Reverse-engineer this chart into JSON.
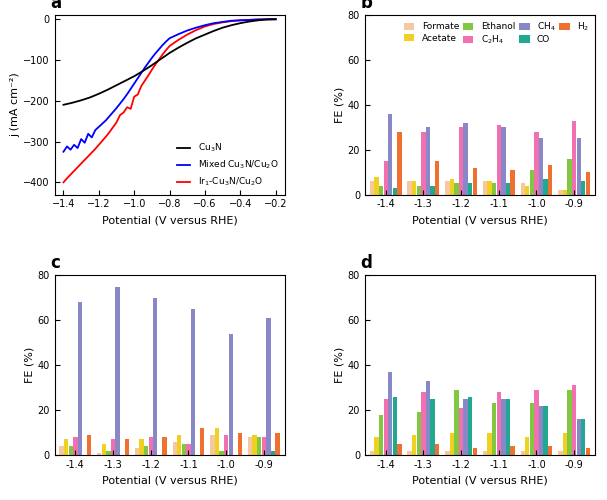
{
  "panel_a": {
    "xlabel": "Potential (V versus RHE)",
    "ylabel": "j (mA cm⁻²)",
    "xlim": [
      -1.45,
      -0.15
    ],
    "ylim": [
      -430,
      10
    ],
    "yticks": [
      0,
      -100,
      -200,
      -300,
      -400
    ],
    "xticks": [
      -1.4,
      -1.2,
      -1.0,
      -0.8,
      -0.6,
      -0.4,
      -0.2
    ],
    "Cu3N_x": [
      -1.4,
      -1.35,
      -1.3,
      -1.25,
      -1.2,
      -1.15,
      -1.1,
      -1.05,
      -1.0,
      -0.95,
      -0.9,
      -0.85,
      -0.8,
      -0.75,
      -0.7,
      -0.65,
      -0.6,
      -0.55,
      -0.5,
      -0.45,
      -0.4,
      -0.35,
      -0.3,
      -0.25,
      -0.2
    ],
    "Cu3N_y": [
      -210,
      -205,
      -199,
      -192,
      -183,
      -173,
      -162,
      -151,
      -140,
      -127,
      -113,
      -98,
      -83,
      -70,
      -58,
      -47,
      -38,
      -29,
      -21,
      -15,
      -10,
      -6,
      -3,
      -1,
      -0.5
    ],
    "Mixed_x": [
      -1.4,
      -1.38,
      -1.36,
      -1.34,
      -1.32,
      -1.3,
      -1.28,
      -1.26,
      -1.24,
      -1.22,
      -1.2,
      -1.18,
      -1.16,
      -1.14,
      -1.12,
      -1.1,
      -1.08,
      -1.06,
      -1.04,
      -1.02,
      -1.0,
      -0.98,
      -0.96,
      -0.94,
      -0.92,
      -0.9,
      -0.88,
      -0.86,
      -0.84,
      -0.82,
      -0.8,
      -0.75,
      -0.7,
      -0.65,
      -0.6,
      -0.55,
      -0.5,
      -0.45,
      -0.4,
      -0.35,
      -0.3,
      -0.25,
      -0.2
    ],
    "Mixed_y": [
      -325,
      -318,
      -312,
      -306,
      -299,
      -294,
      -287,
      -281,
      -276,
      -272,
      -264,
      -256,
      -248,
      -238,
      -228,
      -218,
      -207,
      -196,
      -184,
      -171,
      -158,
      -145,
      -132,
      -119,
      -107,
      -95,
      -84,
      -74,
      -64,
      -55,
      -47,
      -37,
      -28,
      -21,
      -15,
      -10,
      -7,
      -4,
      -3,
      -2,
      -1,
      -0.5,
      -0.3
    ],
    "Mixed_noise_x": [
      -1.4,
      -1.38,
      -1.36,
      -1.34,
      -1.32,
      -1.3,
      -1.28,
      -1.26,
      -1.24,
      -1.22,
      -1.2
    ],
    "Mixed_noise_y": [
      -325,
      -312,
      -320,
      -308,
      -316,
      -294,
      -303,
      -281,
      -290,
      -272,
      -264
    ],
    "Ir1_x": [
      -1.4,
      -1.38,
      -1.36,
      -1.34,
      -1.32,
      -1.3,
      -1.28,
      -1.26,
      -1.24,
      -1.22,
      -1.2,
      -1.18,
      -1.16,
      -1.14,
      -1.12,
      -1.1,
      -1.08,
      -1.06,
      -1.04,
      -1.02,
      -1.0,
      -0.98,
      -0.96,
      -0.94,
      -0.92,
      -0.9,
      -0.88,
      -0.86,
      -0.84,
      -0.82,
      -0.8,
      -0.75,
      -0.7,
      -0.65,
      -0.6,
      -0.55,
      -0.5,
      -0.45,
      -0.4,
      -0.35,
      -0.3,
      -0.25,
      -0.2
    ],
    "Ir1_y": [
      -400,
      -390,
      -381,
      -372,
      -363,
      -354,
      -345,
      -336,
      -327,
      -318,
      -308,
      -298,
      -288,
      -277,
      -265,
      -253,
      -241,
      -229,
      -216,
      -203,
      -190,
      -177,
      -164,
      -151,
      -138,
      -124,
      -111,
      -99,
      -87,
      -76,
      -66,
      -51,
      -38,
      -27,
      -18,
      -12,
      -8,
      -5,
      -3,
      -2,
      -1,
      -0.5,
      -0.3
    ],
    "Ir1_noise_x": [
      -1.1,
      -1.08,
      -1.06,
      -1.04,
      -1.02,
      -1.0,
      -0.98,
      -0.96
    ],
    "Ir1_noise_y": [
      -253,
      -235,
      -229,
      -216,
      -220,
      -190,
      -185,
      -164
    ]
  },
  "bar_colors": {
    "Formate": "#F5C8A0",
    "Acetate": "#F0D020",
    "Ethanol": "#80C840",
    "C2H4": "#F070B0",
    "CH4": "#8888C8",
    "CO": "#20A890",
    "H2": "#F07030"
  },
  "potentials": [
    -1.4,
    -1.3,
    -1.2,
    -1.1,
    -1.0,
    -0.9
  ],
  "panel_b": {
    "xlabel": "Potential (V versus RHE)",
    "ylabel": "FE (%)",
    "ylim": [
      0,
      80
    ],
    "yticks": [
      0,
      20,
      40,
      60,
      80
    ],
    "data": {
      "Formate": [
        6,
        6,
        6,
        6,
        5,
        2
      ],
      "Acetate": [
        8,
        6,
        7,
        6,
        4,
        2
      ],
      "Ethanol": [
        4,
        4,
        5,
        5,
        11,
        16
      ],
      "C2H4": [
        15,
        28,
        30,
        31,
        28,
        33
      ],
      "CH4": [
        36,
        30,
        32,
        30,
        25,
        25
      ],
      "CO": [
        3,
        4,
        5,
        5,
        7,
        6
      ],
      "H2": [
        28,
        15,
        12,
        11,
        13,
        10
      ]
    }
  },
  "panel_c": {
    "xlabel": "Potential (V versus RHE)",
    "ylabel": "FE (%)",
    "ylim": [
      0,
      80
    ],
    "yticks": [
      0,
      20,
      40,
      60,
      80
    ],
    "data": {
      "Formate": [
        4,
        1,
        3,
        6,
        9,
        8
      ],
      "Acetate": [
        7,
        5,
        7,
        9,
        12,
        9
      ],
      "Ethanol": [
        4,
        2,
        4,
        5,
        2,
        8
      ],
      "C2H4": [
        8,
        7,
        8,
        5,
        9,
        8
      ],
      "CH4": [
        68,
        75,
        70,
        65,
        54,
        61
      ],
      "CO": [
        0,
        0,
        0,
        0,
        0,
        2
      ],
      "H2": [
        9,
        7,
        8,
        12,
        10,
        10
      ]
    }
  },
  "panel_d": {
    "xlabel": "Potential (V versus RHE)",
    "ylabel": "FE (%)",
    "ylim": [
      0,
      80
    ],
    "yticks": [
      0,
      20,
      40,
      60,
      80
    ],
    "data": {
      "Formate": [
        2,
        2,
        2,
        2,
        2,
        2
      ],
      "Acetate": [
        8,
        9,
        10,
        10,
        8,
        10
      ],
      "Ethanol": [
        18,
        19,
        29,
        23,
        23,
        29
      ],
      "C2H4": [
        25,
        28,
        21,
        28,
        29,
        31
      ],
      "CH4": [
        37,
        33,
        25,
        25,
        22,
        16
      ],
      "CO": [
        26,
        25,
        26,
        25,
        22,
        16
      ],
      "H2": [
        5,
        5,
        3,
        4,
        4,
        3
      ]
    }
  }
}
